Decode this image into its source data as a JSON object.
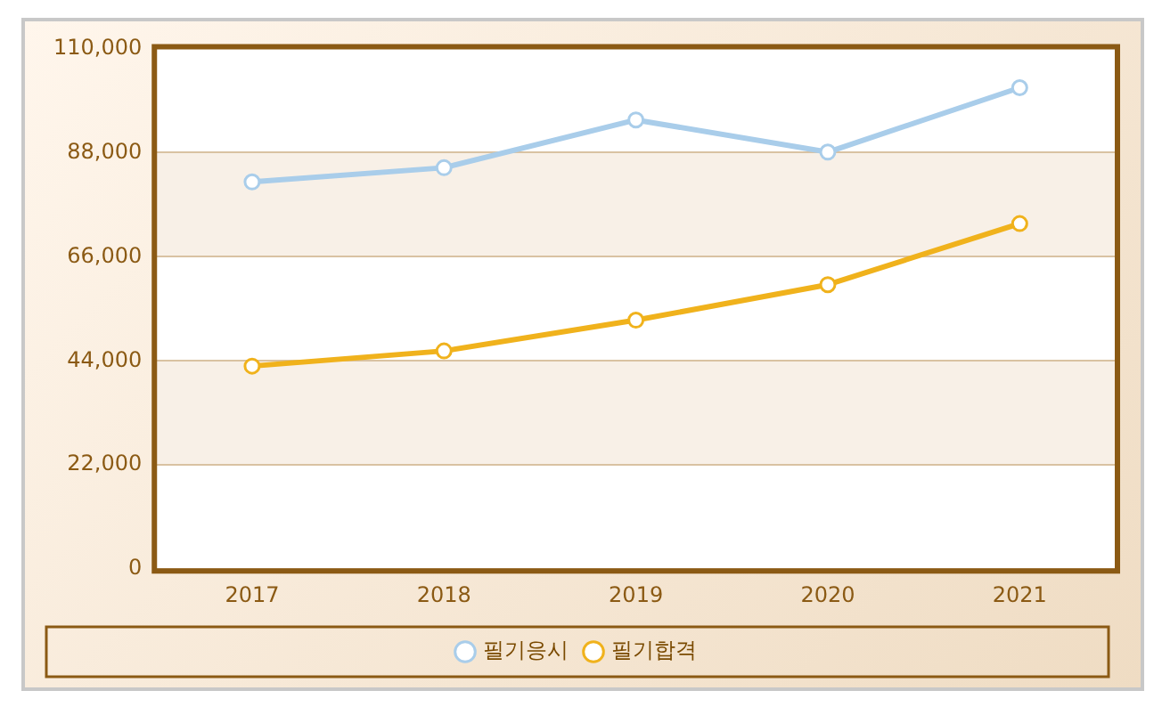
{
  "chart_data": {
    "type": "line",
    "categories": [
      "2017",
      "2018",
      "2019",
      "2020",
      "2021"
    ],
    "series": [
      {
        "name": "필기응시",
        "color": "#a9cdea",
        "values": [
          81800,
          84800,
          94900,
          88100,
          101700
        ]
      },
      {
        "name": "필기합격",
        "color": "#f0b21c",
        "values": [
          42900,
          46100,
          52600,
          60100,
          73000
        ]
      }
    ],
    "ylim": [
      0,
      110000
    ],
    "yticks": [
      {
        "value": 0,
        "label": "0"
      },
      {
        "value": 22000,
        "label": "22,000"
      },
      {
        "value": 44000,
        "label": "44,000"
      },
      {
        "value": 66000,
        "label": "66,000"
      },
      {
        "value": 88000,
        "label": "88,000"
      },
      {
        "value": 110000,
        "label": "110,000"
      }
    ],
    "grid": "y",
    "legend": "bottom",
    "marker": "circle",
    "line_style": "solid"
  }
}
